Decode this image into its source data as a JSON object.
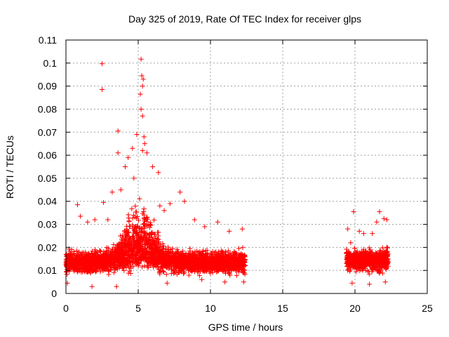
{
  "chart_data": {
    "type": "scatter",
    "title": "Day 325 of 2019, Rate Of TEC Index for receiver glps",
    "xlabel": "GPS time / hours",
    "ylabel": "ROTI / TECUs",
    "xlim": [
      0,
      25
    ],
    "ylim": [
      0,
      0.11
    ],
    "x_ticks": [
      0,
      5,
      10,
      15,
      20,
      25
    ],
    "y_ticks": [
      0,
      0.01,
      0.02,
      0.03,
      0.04,
      0.05,
      0.06,
      0.07,
      0.08,
      0.09,
      0.1,
      0.11
    ],
    "x_tick_labels": [
      "0",
      "5",
      "10",
      "15",
      "20",
      "25"
    ],
    "y_tick_labels": [
      "0",
      "0.01",
      "0.02",
      "0.03",
      "0.04",
      "0.05",
      "0.06",
      "0.07",
      "0.08",
      "0.09",
      "0.1",
      "0.11"
    ],
    "grid": true,
    "marker": "+",
    "color": "#ff0000",
    "series": [
      {
        "name": "ROTI",
        "points": [
          [
            2.5,
            0.0997
          ],
          [
            2.5,
            0.0885
          ],
          [
            5.2,
            0.1017
          ],
          [
            5.25,
            0.0945
          ],
          [
            5.35,
            0.093
          ],
          [
            5.3,
            0.09
          ],
          [
            5.15,
            0.0865
          ],
          [
            5.2,
            0.08
          ],
          [
            5.3,
            0.077
          ],
          [
            3.6,
            0.0705
          ],
          [
            4.9,
            0.069
          ],
          [
            5.4,
            0.068
          ],
          [
            5.45,
            0.065
          ],
          [
            5.3,
            0.062
          ],
          [
            4.6,
            0.063
          ],
          [
            3.6,
            0.061
          ],
          [
            4.3,
            0.059
          ],
          [
            5.6,
            0.061
          ],
          [
            6.0,
            0.055
          ],
          [
            6.4,
            0.0525
          ],
          [
            4.1,
            0.055
          ],
          [
            4.7,
            0.05
          ],
          [
            3.2,
            0.044
          ],
          [
            3.8,
            0.045
          ],
          [
            7.9,
            0.044
          ],
          [
            2.6,
            0.0395
          ],
          [
            0.8,
            0.0385
          ],
          [
            6.8,
            0.036
          ],
          [
            8.2,
            0.04
          ],
          [
            7.2,
            0.039
          ],
          [
            1.0,
            0.0335
          ],
          [
            1.5,
            0.031
          ],
          [
            2.0,
            0.032
          ],
          [
            2.9,
            0.032
          ],
          [
            6.5,
            0.038
          ],
          [
            8.9,
            0.032
          ],
          [
            10.5,
            0.031
          ],
          [
            12.2,
            0.028
          ],
          [
            9.6,
            0.029
          ],
          [
            11.3,
            0.027
          ],
          [
            19.9,
            0.0355
          ],
          [
            21.7,
            0.0355
          ],
          [
            22.0,
            0.0325
          ],
          [
            21.5,
            0.031
          ],
          [
            20.6,
            0.026
          ],
          [
            19.5,
            0.028
          ],
          [
            22.2,
            0.032
          ],
          [
            20.3,
            0.027
          ],
          [
            21.2,
            0.026
          ],
          [
            19.7,
            0.022
          ],
          [
            0.1,
            0.0045
          ],
          [
            1.8,
            0.003
          ],
          [
            3.5,
            0.003
          ],
          [
            7.0,
            0.0045
          ],
          [
            11.0,
            0.005
          ],
          [
            12.3,
            0.005
          ],
          [
            19.8,
            0.0045
          ],
          [
            21.0,
            0.004
          ],
          [
            22.1,
            0.005
          ],
          [
            9.4,
            0.006
          ]
        ]
      }
    ],
    "clusters": [
      {
        "x_range": [
          0.0,
          12.4
        ],
        "base_mean": 0.0135,
        "base_spread": 0.0075
      },
      {
        "x_range": [
          19.4,
          22.3
        ],
        "base_mean": 0.0145,
        "base_spread": 0.0075
      }
    ],
    "peak": {
      "x_center": 5.1,
      "x_width": 1.4,
      "amplitude": 0.02
    }
  }
}
